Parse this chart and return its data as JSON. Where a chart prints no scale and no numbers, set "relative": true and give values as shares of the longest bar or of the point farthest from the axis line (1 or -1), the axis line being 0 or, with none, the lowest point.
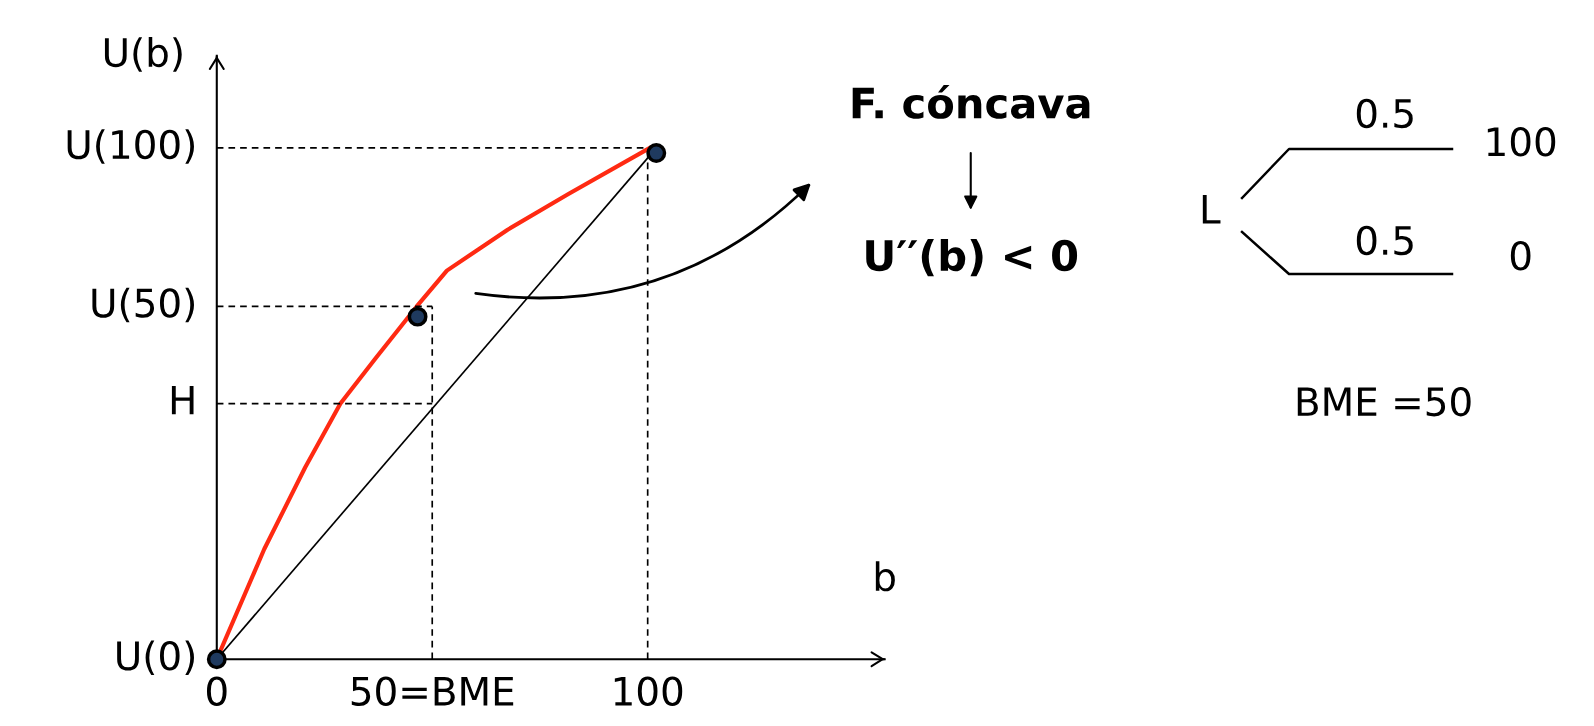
{
  "chart_data": {
    "type": "line",
    "relative": true,
    "xlabel": "b",
    "ylabel": "U(b)",
    "xlim": [
      0,
      155
    ],
    "xticks": [
      0,
      {
        "value": 50,
        "label": "50=BME"
      },
      100
    ],
    "series": [
      {
        "color": "#ff2a12",
        "x": [
          0,
          11,
          20.5,
          28.7,
          37,
          46.4,
          53.4,
          67.5,
          81.6,
          100.5
        ],
        "values": [
          0,
          0.215,
          0.375,
          0.5,
          0.59,
          0.69,
          0.76,
          0.84,
          0.91,
          1.0
        ]
      },
      {
        "color": "#000000",
        "x": [
          0,
          101
        ],
        "values": [
          0,
          0.99
        ]
      },
      {
        "name": "U(100)",
        "color": "#000000",
        "line_style": "dashed",
        "x": [
          0,
          100
        ],
        "values": [
          1.0,
          1.0
        ]
      },
      {
        "name": "U(50)",
        "color": "#000000",
        "line_style": "dashed",
        "x": [
          0,
          50
        ],
        "values": [
          0.69,
          0.69
        ]
      },
      {
        "name": "H",
        "color": "#000000",
        "line_style": "dashed",
        "x": [
          0,
          50
        ],
        "values": [
          0.5,
          0.5
        ]
      },
      {
        "color": "#000000",
        "line_style": "dashed",
        "x": [
          50,
          50
        ],
        "values": [
          0,
          0.69
        ]
      },
      {
        "color": "#000000",
        "line_style": "dashed",
        "x": [
          100,
          100
        ],
        "values": [
          0,
          1.0
        ]
      },
      {
        "type": "scatter",
        "name": "U(0)",
        "color": "#1f3a5f",
        "marker": "circle",
        "x": [
          0
        ],
        "values": [
          0
        ]
      },
      {
        "type": "scatter",
        "color": "#1f3a5f",
        "marker": "circle",
        "x": [
          46.6,
          102
        ],
        "values": [
          0.67,
          0.99
        ]
      }
    ],
    "annotations": [
      "F. cóncava",
      "U′′(b) < 0",
      "L",
      "0.5",
      "100",
      "0.5",
      "0",
      "BME =50"
    ]
  }
}
